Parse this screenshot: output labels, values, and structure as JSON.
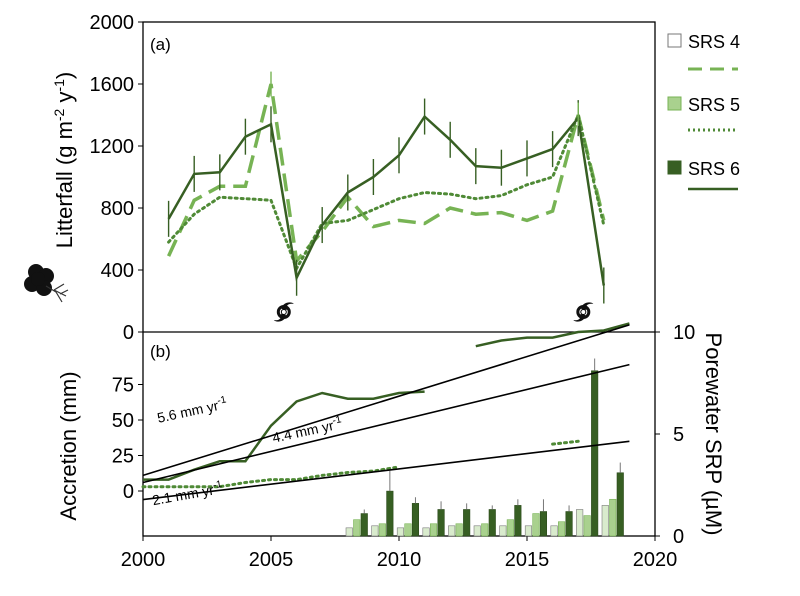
{
  "colors": {
    "srs4": "#d9ebcd",
    "srs5_line": "#77b354",
    "srs5_bar": "#a9d18e",
    "srs6": "#375f23",
    "axis": "#000000",
    "errorbar": "#555555"
  },
  "icons": {
    "hurricane": "hurricane-icon",
    "tree": "mangrove-tree-icon"
  },
  "legend": {
    "srs4": "SRS 4",
    "srs5": "SRS 5",
    "srs6": "SRS 6"
  },
  "chart_data": [
    {
      "type": "line",
      "panel_label": "(a)",
      "ylabel": "Litterfall (g m-2 y-1)",
      "ylim": [
        0,
        2000
      ],
      "yticks": [
        0,
        400,
        800,
        1200,
        1600,
        2000
      ],
      "xlim": [
        2000,
        2020
      ],
      "hurricane_years": [
        2005.5,
        2017.2
      ],
      "series": [
        {
          "name": "SRS 4",
          "style": "dashed",
          "x": [
            2001,
            2002,
            2003,
            2004,
            2005,
            2006,
            2007,
            2008,
            2009,
            2010,
            2011,
            2012,
            2013,
            2014,
            2015,
            2016,
            2017,
            2018
          ],
          "values": [
            490,
            850,
            940,
            940,
            1600,
            460,
            650,
            870,
            680,
            720,
            700,
            800,
            760,
            770,
            720,
            780,
            1400,
            720
          ]
        },
        {
          "name": "SRS 5",
          "style": "dotted",
          "x": [
            2001,
            2002,
            2003,
            2004,
            2005,
            2006,
            2007,
            2008,
            2009,
            2010,
            2011,
            2012,
            2013,
            2014,
            2015,
            2016,
            2017,
            2018
          ],
          "values": [
            580,
            760,
            870,
            860,
            850,
            410,
            700,
            720,
            790,
            860,
            900,
            890,
            860,
            880,
            950,
            1000,
            1400,
            690
          ]
        },
        {
          "name": "SRS 6",
          "style": "solid",
          "x": [
            2001,
            2002,
            2003,
            2004,
            2005,
            2006,
            2007,
            2008,
            2009,
            2010,
            2011,
            2012,
            2013,
            2014,
            2015,
            2016,
            2017,
            2018
          ],
          "values": [
            730,
            1020,
            1030,
            1260,
            1340,
            350,
            690,
            900,
            1000,
            1140,
            1390,
            1240,
            1070,
            1060,
            1120,
            1180,
            1380,
            300
          ]
        }
      ]
    },
    {
      "type": "line",
      "panel_label": "(b)",
      "ylabel": "Accretion (mm)",
      "ylabel_right": "Porewater SRP (µM)",
      "yticks": [
        0,
        25,
        50,
        75
      ],
      "yticks_right": [
        0,
        5,
        10
      ],
      "ylim_right": [
        0,
        10
      ],
      "xlabel_ticks": [
        2000,
        2005,
        2010,
        2015,
        2020
      ],
      "series": [
        {
          "name": "SRS 6",
          "style": "solid",
          "segments": [
            {
              "x": [
                2000,
                2001,
                2002,
                2003,
                2004,
                2005,
                2006,
                2007,
                2008,
                2009,
                2010,
                2011
              ],
              "values": [
                8,
                8,
                15,
                21,
                21,
                46,
                63,
                69,
                65,
                65,
                69,
                70
              ]
            },
            {
              "x": [
                2013,
                2014,
                2015,
                2016,
                2017,
                2018,
                2019
              ],
              "values": [
                102,
                106,
                108,
                108,
                112,
                113,
                118
              ]
            }
          ]
        },
        {
          "name": "SRS 5",
          "style": "dotted",
          "segments": [
            {
              "x": [
                2000,
                2001,
                2002,
                2003,
                2004,
                2005,
                2006,
                2007,
                2008,
                2009,
                2010
              ],
              "values": [
                3,
                3,
                3,
                3,
                6,
                8,
                8,
                11,
                13,
                14,
                17
              ]
            },
            {
              "x": [
                2016,
                2017
              ],
              "values": [
                33,
                35
              ]
            }
          ]
        }
      ],
      "trend_lines": [
        {
          "label": "5.6 mm yr-1",
          "x": [
            2000,
            2019
          ],
          "values": [
            11,
            117
          ]
        },
        {
          "label": "4.4 mm yr-1",
          "x": [
            2000,
            2019
          ],
          "values": [
            6,
            89
          ]
        },
        {
          "label": "2.1 mm yr-1",
          "x": [
            2000,
            2019
          ],
          "values": [
            -6,
            35
          ]
        }
      ],
      "srp_bars": {
        "x": [
          2008,
          2009,
          2010,
          2011,
          2012,
          2013,
          2014,
          2015,
          2016,
          2017,
          2018
        ],
        "series": [
          {
            "name": "SRS 4",
            "values": [
              0.4,
              0.5,
              0.4,
              0.4,
              0.5,
              0.5,
              0.5,
              0.5,
              0.5,
              1.3,
              1.5
            ]
          },
          {
            "name": "SRS 5",
            "values": [
              0.8,
              0.6,
              0.6,
              0.6,
              0.6,
              0.6,
              0.8,
              1.1,
              0.7,
              1.0,
              1.8
            ]
          },
          {
            "name": "SRS 6",
            "values": [
              1.1,
              2.2,
              1.6,
              1.3,
              1.3,
              1.3,
              1.5,
              1.2,
              1.2,
              8.1,
              3.1
            ]
          }
        ],
        "errors": [
          0.2,
          1.0,
          0.3,
          0.4,
          0.3,
          0.2,
          0.3,
          0.6,
          0.3,
          0.6,
          0.5
        ]
      }
    }
  ]
}
